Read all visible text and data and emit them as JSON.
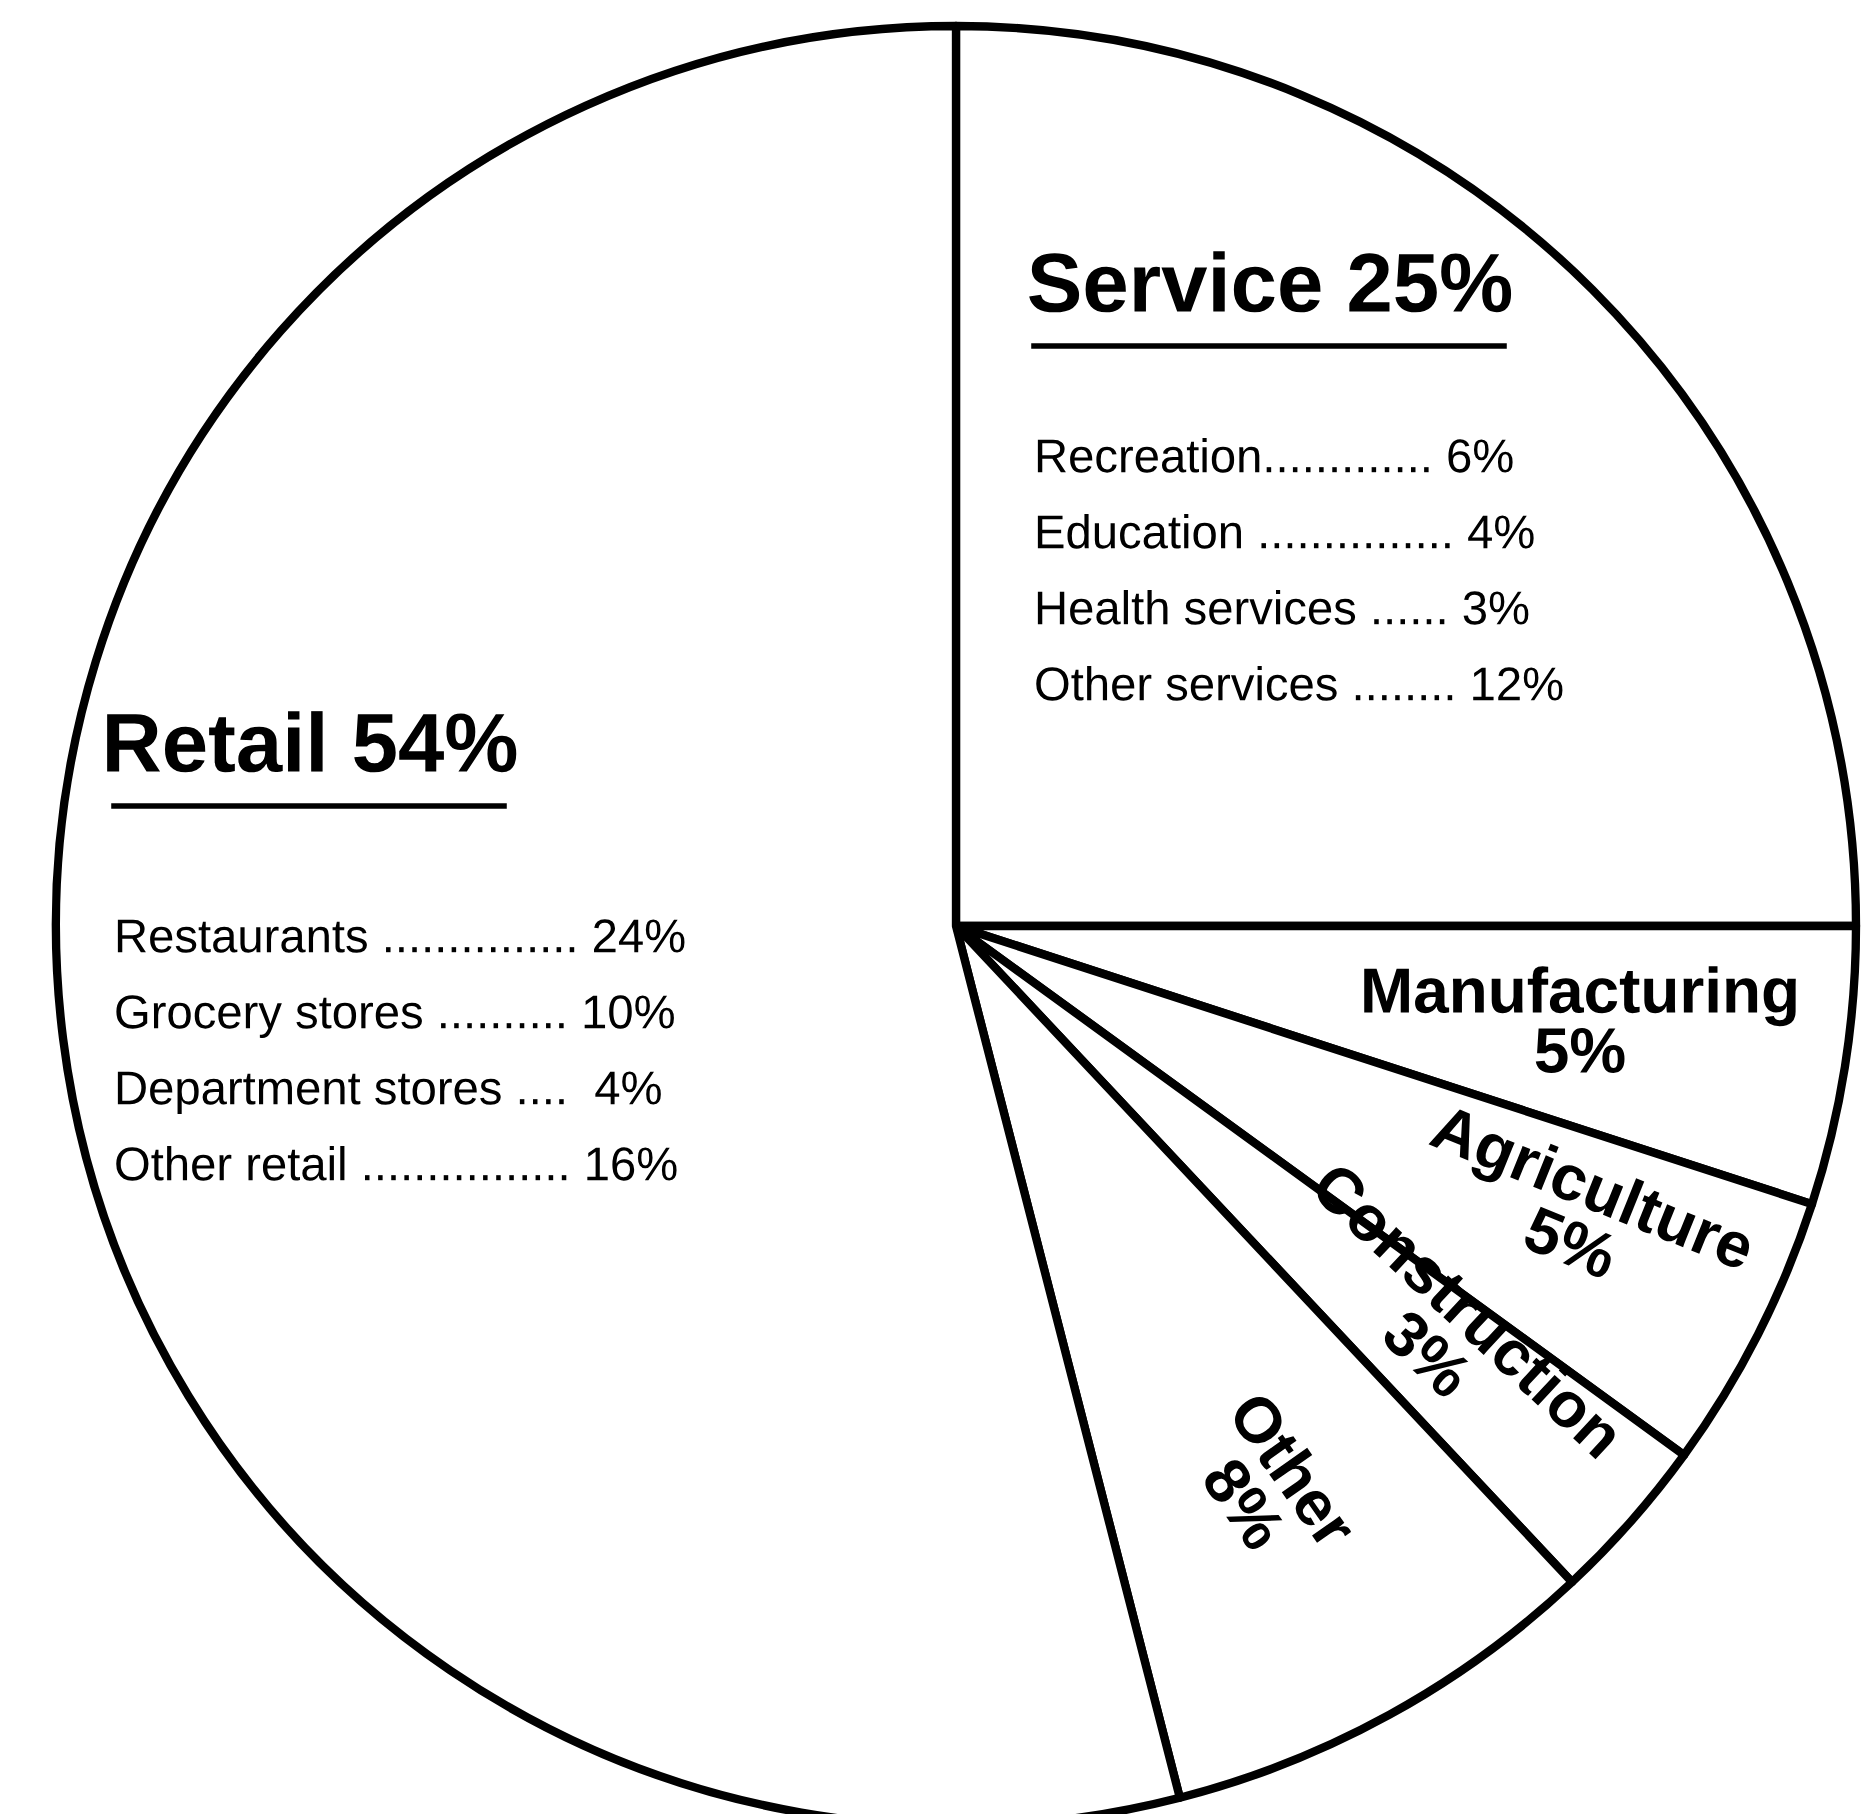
{
  "chart_data": {
    "type": "pie",
    "categories": [
      "Service",
      "Manufacturing",
      "Agriculture",
      "Construction",
      "Other",
      "Retail"
    ],
    "values": [
      25,
      5,
      5,
      3,
      8,
      54
    ],
    "value_labels": [
      "25%",
      "5%",
      "5%",
      "3%",
      "8%",
      "54%"
    ],
    "colors": [
      "#ffffff",
      "#ffffff",
      "#ffffff",
      "#ffffff",
      "#ffffff",
      "#ffffff"
    ],
    "annotations": [
      "Recreation............. 6%",
      "Education ............... 4%",
      "Health services ...... 3%",
      "Other services ........ 12%",
      "Restaurants ............... 24%",
      "Grocery stores .......... 10%",
      "Department stores ....  4%",
      "Other retail ................ 16%"
    ],
    "legend": false
  }
}
